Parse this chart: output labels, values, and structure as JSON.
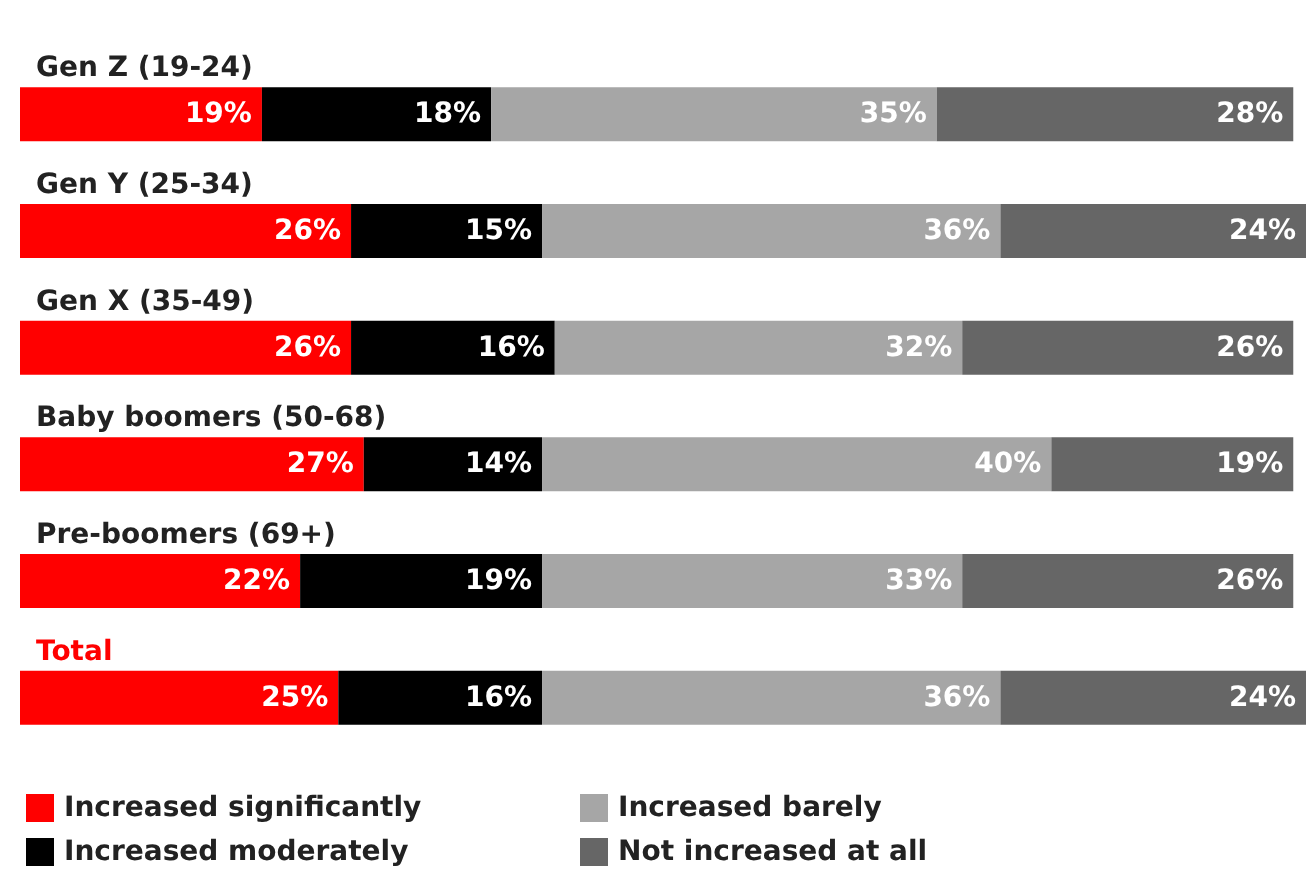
{
  "chart_data": {
    "type": "bar",
    "orientation": "horizontal",
    "stacked": true,
    "legend": "bottom left",
    "categories": [
      "Gen Z (19-24)",
      "Gen Y (25-34)",
      "Gen X (35-49)",
      "Baby boomers (50-68)",
      "Pre-boomers (69+)",
      "Total"
    ],
    "series": [
      {
        "name": "Increased significantly",
        "color": "#ff0000",
        "values": [
          19,
          26,
          26,
          27,
          22,
          25
        ],
        "value_labels": [
          "19%",
          "26%",
          "26%",
          "27%",
          "22%",
          "25%"
        ]
      },
      {
        "name": "Increased moderately",
        "color": "#000000",
        "values": [
          18,
          15,
          16,
          14,
          19,
          16
        ],
        "value_labels": [
          "18%",
          "15%",
          "16%",
          "14%",
          "19%",
          "16%"
        ]
      },
      {
        "name": "Increased barely",
        "color": "#a6a6a6",
        "values": [
          35,
          36,
          32,
          40,
          33,
          36
        ],
        "value_labels": [
          "35%",
          "36%",
          "32%",
          "40%",
          "33%",
          "36%"
        ]
      },
      {
        "name": "Not increased at all",
        "color": "#666666",
        "values": [
          28,
          24,
          26,
          19,
          26,
          24
        ],
        "value_labels": [
          "28%",
          "24%",
          "26%",
          "19%",
          "26%",
          "24%"
        ]
      }
    ]
  }
}
